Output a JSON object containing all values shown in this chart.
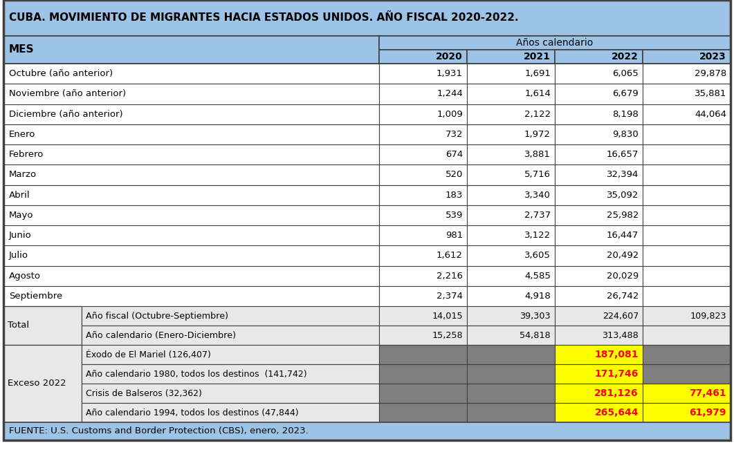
{
  "title": "CUBA. MOVIMIENTO DE MIGRANTES HACIA ESTADOS UNIDOS. AÑO FISCAL 2020-2022.",
  "col_header": "Años calendario",
  "years": [
    "2020",
    "2021",
    "2022",
    "2023"
  ],
  "row_label_col": "MES",
  "months": [
    "Octubre (año anterior)",
    "Noviembre (año anterior)",
    "Diciembre (año anterior)",
    "Enero",
    "Febrero",
    "Marzo",
    "Abril",
    "Mayo",
    "Junio",
    "Julio",
    "Agosto",
    "Septiembre"
  ],
  "month_data": [
    [
      "1,931",
      "1,691",
      "6,065",
      "29,878"
    ],
    [
      "1,244",
      "1,614",
      "6,679",
      "35,881"
    ],
    [
      "1,009",
      "2,122",
      "8,198",
      "44,064"
    ],
    [
      "732",
      "1,972",
      "9,830",
      ""
    ],
    [
      "674",
      "3,881",
      "16,657",
      ""
    ],
    [
      "520",
      "5,716",
      "32,394",
      ""
    ],
    [
      "183",
      "3,340",
      "35,092",
      ""
    ],
    [
      "539",
      "2,737",
      "25,982",
      ""
    ],
    [
      "981",
      "3,122",
      "16,447",
      ""
    ],
    [
      "1,612",
      "3,605",
      "20,492",
      ""
    ],
    [
      "2,216",
      "4,585",
      "20,029",
      ""
    ],
    [
      "2,374",
      "4,918",
      "26,742",
      ""
    ]
  ],
  "total_label1": "Total",
  "total_rows": [
    {
      "label2": "Año fiscal (Octubre-Septiembre)",
      "values": [
        "14,015",
        "39,303",
        "224,607",
        "109,823"
      ]
    },
    {
      "label2": "Año calendario (Enero-Diciembre)",
      "values": [
        "15,258",
        "54,818",
        "313,488",
        ""
      ]
    }
  ],
  "exceso_label": "Exceso 2022",
  "exceso_rows": [
    {
      "label2": "Éxodo de El Mariel (126,407)",
      "values": [
        "",
        "",
        "187,081",
        ""
      ]
    },
    {
      "label2": "Año calendario 1980, todos los destinos  (141,742)",
      "values": [
        "",
        "",
        "171,746",
        ""
      ]
    },
    {
      "label2": "Crisis de Balseros (32,362)",
      "values": [
        "",
        "",
        "281,126",
        "77,461"
      ]
    },
    {
      "label2": "Año calendario 1994, todos los destinos (47,844)",
      "values": [
        "",
        "",
        "265,644",
        "61,979"
      ]
    }
  ],
  "footer": "FUENTE: U.S. Customs and Border Protection (CBS), enero, 2023.",
  "light_blue": "#9DC3E6",
  "white": "#FFFFFF",
  "light_gray": "#E8E8E8",
  "dark_gray": "#7F7F7F",
  "yellow": "#FFFF00",
  "border_color": "#404040",
  "inner_border": "#808080"
}
